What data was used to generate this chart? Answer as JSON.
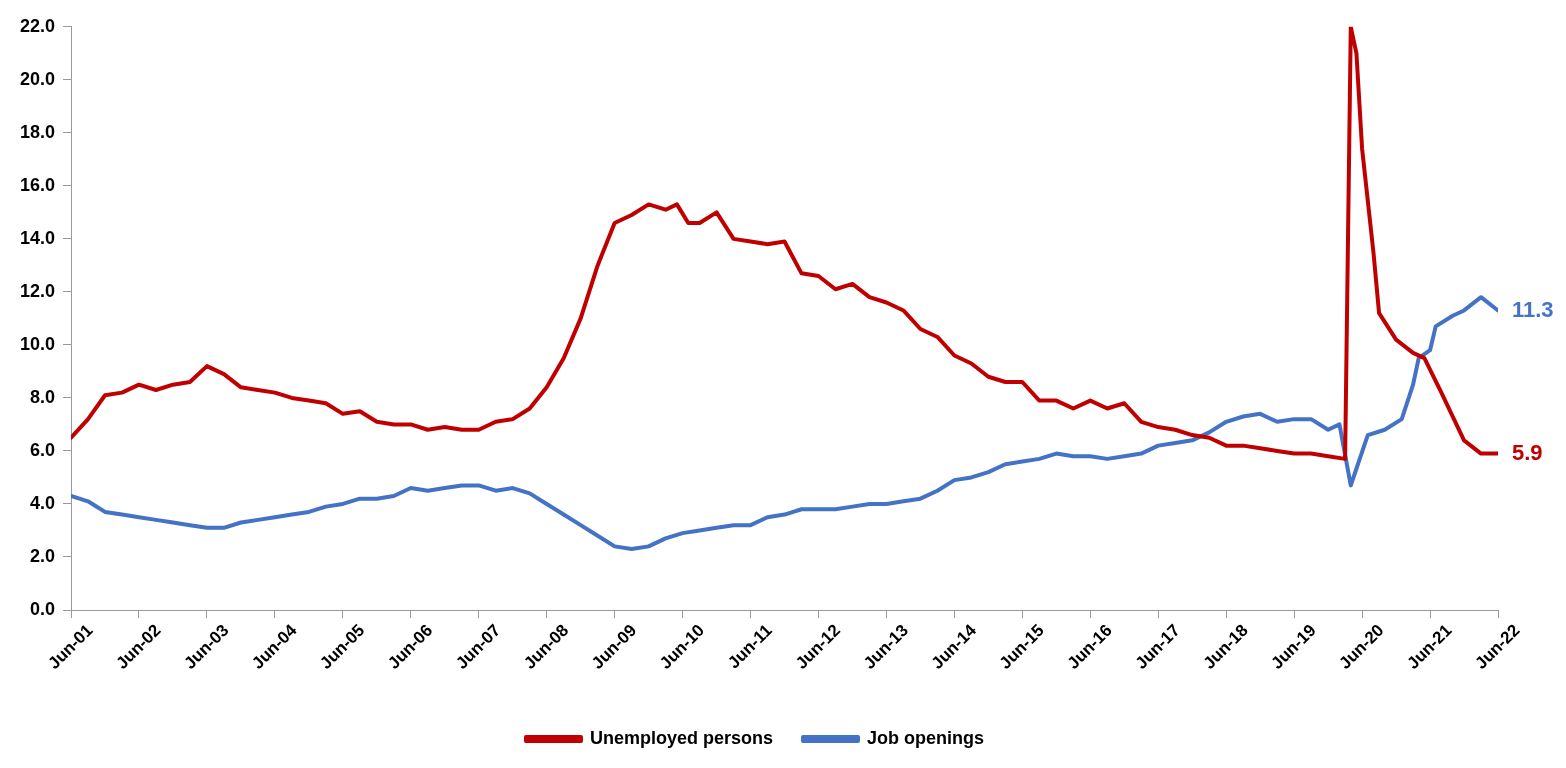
{
  "chart_data": {
    "type": "line",
    "xlim": [
      "2001-06",
      "2022-06"
    ],
    "xticks": [
      {
        "value": "2001-06",
        "label": "Jun-01"
      },
      {
        "value": "2002-06",
        "label": "Jun-02"
      },
      {
        "value": "2003-06",
        "label": "Jun-03"
      },
      {
        "value": "2004-06",
        "label": "Jun-04"
      },
      {
        "value": "2005-06",
        "label": "Jun-05"
      },
      {
        "value": "2006-06",
        "label": "Jun-06"
      },
      {
        "value": "2007-06",
        "label": "Jun-07"
      },
      {
        "value": "2008-06",
        "label": "Jun-08"
      },
      {
        "value": "2009-06",
        "label": "Jun-09"
      },
      {
        "value": "2010-06",
        "label": "Jun-10"
      },
      {
        "value": "2011-06",
        "label": "Jun-11"
      },
      {
        "value": "2012-06",
        "label": "Jun-12"
      },
      {
        "value": "2013-06",
        "label": "Jun-13"
      },
      {
        "value": "2014-06",
        "label": "Jun-14"
      },
      {
        "value": "2015-06",
        "label": "Jun-15"
      },
      {
        "value": "2016-06",
        "label": "Jun-16"
      },
      {
        "value": "2017-06",
        "label": "Jun-17"
      },
      {
        "value": "2018-06",
        "label": "Jun-18"
      },
      {
        "value": "2019-06",
        "label": "Jun-19"
      },
      {
        "value": "2020-06",
        "label": "Jun-20"
      },
      {
        "value": "2021-06",
        "label": "Jun-21"
      },
      {
        "value": "2022-06",
        "label": "Jun-22"
      }
    ],
    "ylim": [
      0,
      22
    ],
    "yticks": [
      {
        "value": 0,
        "label": "0.0"
      },
      {
        "value": 2,
        "label": "2.0"
      },
      {
        "value": 4,
        "label": "4.0"
      },
      {
        "value": 6,
        "label": "6.0"
      },
      {
        "value": 8,
        "label": "8.0"
      },
      {
        "value": 10,
        "label": "10.0"
      },
      {
        "value": 12,
        "label": "12.0"
      },
      {
        "value": 14,
        "label": "14.0"
      },
      {
        "value": 16,
        "label": "16.0"
      },
      {
        "value": 18,
        "label": "18.0"
      },
      {
        "value": 20,
        "label": "20.0"
      },
      {
        "value": 22,
        "label": "22.0"
      }
    ],
    "grid": false,
    "legend": "bottom",
    "marker": "none",
    "line_style": "solid",
    "annotations": [
      {
        "text": "5.9",
        "x": "2022-06",
        "y": 5.9
      },
      {
        "text": "11.3",
        "x": "2022-06",
        "y": 11.3
      }
    ],
    "series": [
      {
        "name": "Unemployed persons",
        "color": "#c00000",
        "x": [
          "2001-06",
          "2001-09",
          "2001-12",
          "2002-03",
          "2002-06",
          "2002-09",
          "2002-12",
          "2003-03",
          "2003-06",
          "2003-09",
          "2003-12",
          "2004-03",
          "2004-06",
          "2004-09",
          "2004-12",
          "2005-03",
          "2005-06",
          "2005-09",
          "2005-12",
          "2006-03",
          "2006-06",
          "2006-09",
          "2006-12",
          "2007-03",
          "2007-06",
          "2007-09",
          "2007-12",
          "2008-03",
          "2008-06",
          "2008-09",
          "2008-12",
          "2009-03",
          "2009-06",
          "2009-09",
          "2009-12",
          "2010-03",
          "2010-05",
          "2010-07",
          "2010-09",
          "2010-12",
          "2011-03",
          "2011-06",
          "2011-09",
          "2011-12",
          "2012-03",
          "2012-06",
          "2012-09",
          "2012-12",
          "2013-03",
          "2013-06",
          "2013-09",
          "2013-12",
          "2014-03",
          "2014-06",
          "2014-09",
          "2014-12",
          "2015-03",
          "2015-06",
          "2015-09",
          "2015-12",
          "2016-03",
          "2016-06",
          "2016-09",
          "2016-12",
          "2017-03",
          "2017-06",
          "2017-09",
          "2017-12",
          "2018-03",
          "2018-06",
          "2018-09",
          "2018-12",
          "2019-03",
          "2019-06",
          "2019-09",
          "2019-12",
          "2020-03",
          "2020-04",
          "2020-05",
          "2020-06",
          "2020-08",
          "2020-09",
          "2020-12",
          "2021-03",
          "2021-05",
          "2021-08",
          "2021-12",
          "2022-03",
          "2022-06"
        ],
        "values": [
          6.5,
          7.2,
          8.1,
          8.2,
          8.5,
          8.3,
          8.5,
          8.6,
          9.2,
          8.9,
          8.4,
          8.3,
          8.2,
          8.0,
          7.9,
          7.8,
          7.4,
          7.5,
          7.1,
          7.0,
          7.0,
          6.8,
          6.9,
          6.8,
          6.8,
          7.1,
          7.2,
          7.6,
          8.4,
          9.5,
          11.0,
          13.0,
          14.6,
          14.9,
          15.3,
          15.1,
          15.3,
          14.6,
          14.6,
          15.0,
          14.0,
          13.9,
          13.8,
          13.9,
          12.7,
          12.6,
          12.1,
          12.3,
          11.8,
          11.6,
          11.3,
          10.6,
          10.3,
          9.6,
          9.3,
          8.8,
          8.6,
          8.6,
          7.9,
          7.9,
          7.6,
          7.9,
          7.6,
          7.8,
          7.1,
          6.9,
          6.8,
          6.6,
          6.5,
          6.2,
          6.2,
          6.1,
          6.0,
          5.9,
          5.9,
          5.8,
          5.7,
          22.0,
          21.0,
          17.4,
          13.5,
          11.2,
          10.2,
          9.7,
          9.5,
          8.2,
          6.4,
          5.9,
          5.9
        ]
      },
      {
        "name": "Job openings",
        "color": "#4472c4",
        "x": [
          "2001-06",
          "2001-09",
          "2001-12",
          "2002-03",
          "2002-06",
          "2002-09",
          "2002-12",
          "2003-03",
          "2003-06",
          "2003-09",
          "2003-12",
          "2004-03",
          "2004-06",
          "2004-09",
          "2004-12",
          "2005-03",
          "2005-06",
          "2005-09",
          "2005-12",
          "2006-03",
          "2006-06",
          "2006-09",
          "2006-12",
          "2007-03",
          "2007-06",
          "2007-09",
          "2007-12",
          "2008-03",
          "2008-06",
          "2008-09",
          "2008-12",
          "2009-03",
          "2009-06",
          "2009-09",
          "2009-12",
          "2010-03",
          "2010-06",
          "2010-09",
          "2010-12",
          "2011-03",
          "2011-06",
          "2011-09",
          "2011-12",
          "2012-03",
          "2012-06",
          "2012-09",
          "2012-12",
          "2013-03",
          "2013-06",
          "2013-09",
          "2013-12",
          "2014-03",
          "2014-06",
          "2014-09",
          "2014-12",
          "2015-03",
          "2015-06",
          "2015-09",
          "2015-12",
          "2016-03",
          "2016-06",
          "2016-09",
          "2016-12",
          "2017-03",
          "2017-06",
          "2017-09",
          "2017-12",
          "2018-03",
          "2018-06",
          "2018-09",
          "2018-12",
          "2019-03",
          "2019-06",
          "2019-09",
          "2019-12",
          "2020-02",
          "2020-04",
          "2020-07",
          "2020-10",
          "2021-01",
          "2021-03",
          "2021-04",
          "2021-06",
          "2021-07",
          "2021-10",
          "2021-12",
          "2022-03",
          "2022-06"
        ],
        "values": [
          4.3,
          4.1,
          3.7,
          3.6,
          3.5,
          3.4,
          3.3,
          3.2,
          3.1,
          3.1,
          3.3,
          3.4,
          3.5,
          3.6,
          3.7,
          3.9,
          4.0,
          4.2,
          4.2,
          4.3,
          4.6,
          4.5,
          4.6,
          4.7,
          4.7,
          4.5,
          4.6,
          4.4,
          4.0,
          3.6,
          3.2,
          2.8,
          2.4,
          2.3,
          2.4,
          2.7,
          2.9,
          3.0,
          3.1,
          3.2,
          3.2,
          3.5,
          3.6,
          3.8,
          3.8,
          3.8,
          3.9,
          4.0,
          4.0,
          4.1,
          4.2,
          4.5,
          4.9,
          5.0,
          5.2,
          5.5,
          5.6,
          5.7,
          5.9,
          5.8,
          5.8,
          5.7,
          5.8,
          5.9,
          6.2,
          6.3,
          6.4,
          6.7,
          7.1,
          7.3,
          7.4,
          7.1,
          7.2,
          7.2,
          6.8,
          7.0,
          4.7,
          6.6,
          6.8,
          7.2,
          8.5,
          9.5,
          9.8,
          10.7,
          11.1,
          11.3,
          11.8,
          11.3
        ]
      }
    ]
  }
}
